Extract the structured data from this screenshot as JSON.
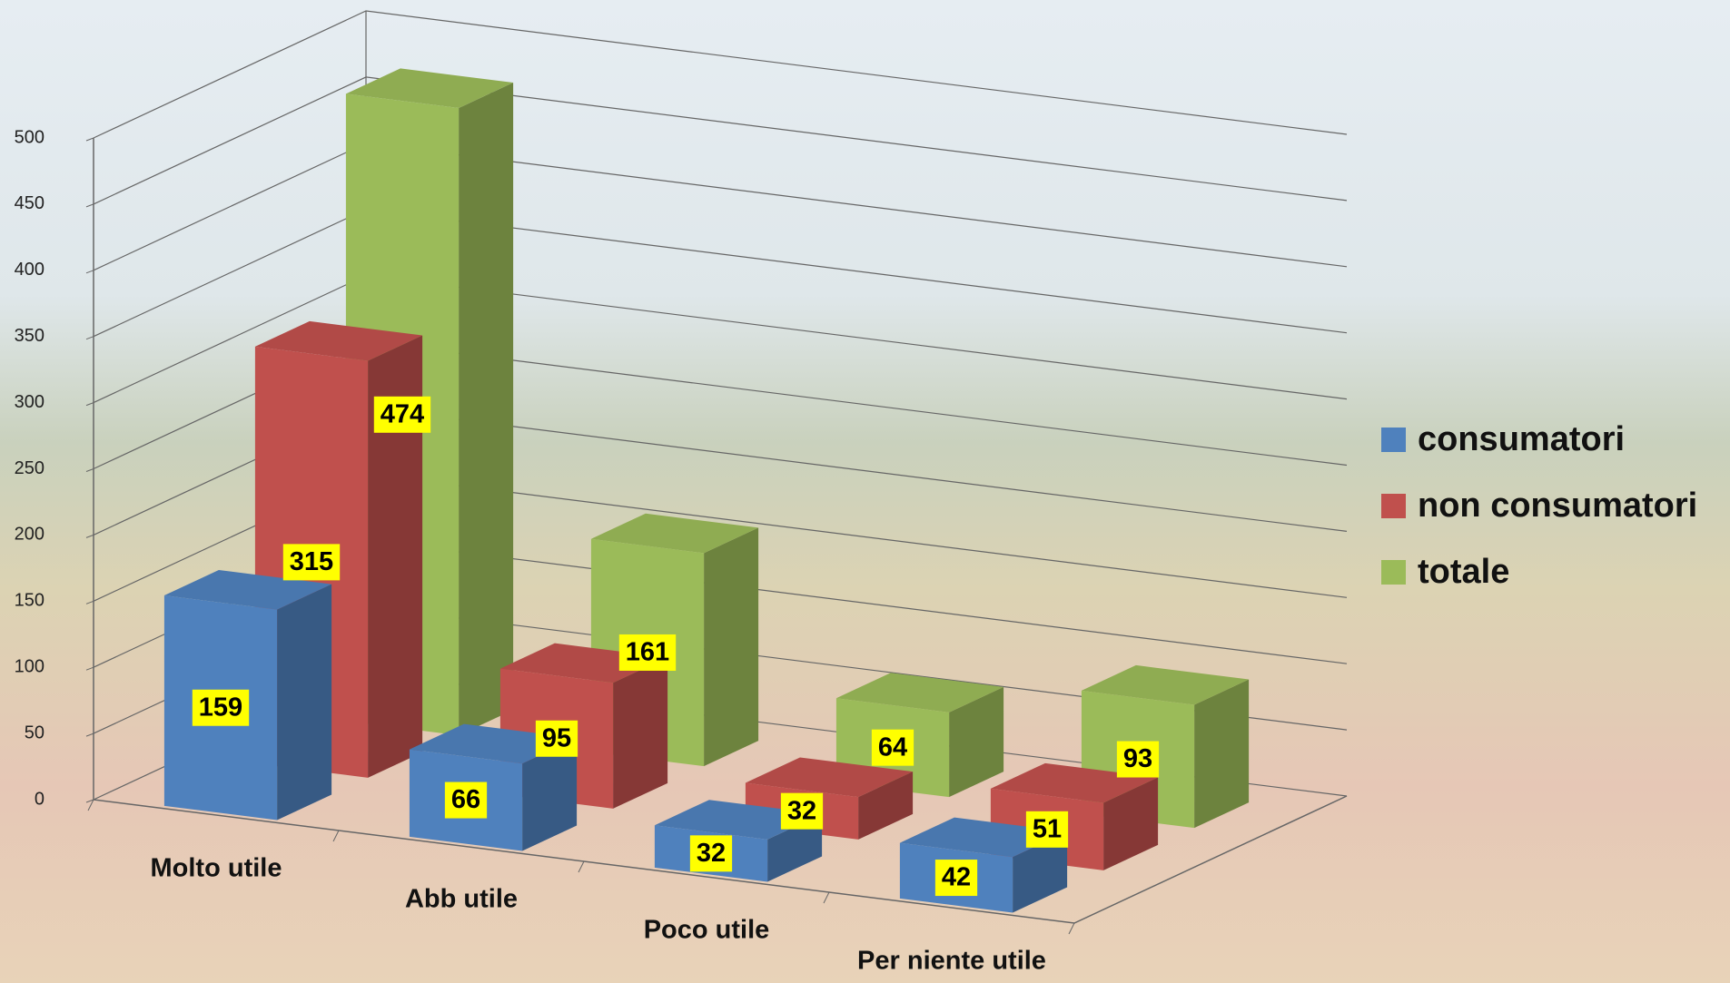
{
  "chart_data": {
    "type": "bar3d",
    "categories": [
      "Molto utile",
      "Abb utile",
      "Poco utile",
      "Per niente utile"
    ],
    "series": [
      {
        "name": "consumatori",
        "color": "#4f81bd",
        "values": [
          159,
          66,
          32,
          42
        ]
      },
      {
        "name": "non consumatori",
        "color": "#c0504d",
        "values": [
          315,
          95,
          32,
          51
        ]
      },
      {
        "name": "totale",
        "color": "#9bbb59",
        "values": [
          474,
          161,
          64,
          93
        ]
      }
    ],
    "ylim": [
      0,
      500
    ],
    "yticks": [
      0,
      50,
      100,
      150,
      200,
      250,
      300,
      350,
      400,
      450,
      500
    ],
    "grid": true,
    "legend": "right"
  }
}
